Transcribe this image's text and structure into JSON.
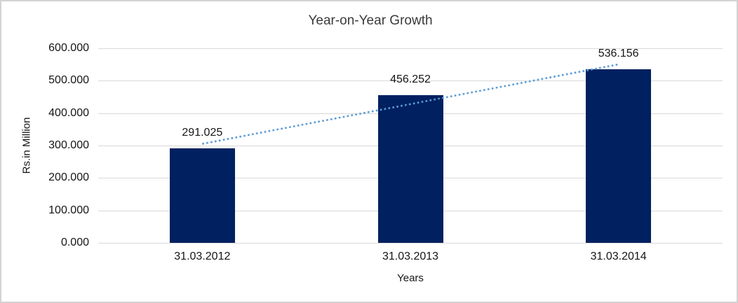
{
  "window": {
    "background": "#ffffff",
    "border_color": "#d3d3d3"
  },
  "chart_data": {
    "type": "bar",
    "title": "Year-on-Year Growth",
    "xlabel": "Years",
    "ylabel": "Rs.in Million",
    "categories": [
      "31.03.2012",
      "31.03.2013",
      "31.03.2014"
    ],
    "values": [
      291.025,
      456.252,
      536.156
    ],
    "data_labels": [
      "291.025",
      "456.252",
      "536.156"
    ],
    "ylim": [
      0,
      600
    ],
    "yticks": [
      0,
      100,
      200,
      300,
      400,
      500,
      600
    ],
    "ytick_labels": [
      "0.000",
      "100.000",
      "200.000",
      "300.000",
      "400.000",
      "500.000",
      "600.000"
    ],
    "grid": true,
    "legend": "none",
    "bar_color": "#002060",
    "gridline_color": "#d9d9d9",
    "trendline": {
      "type": "linear",
      "style": "dotted",
      "color": "#5b9bd5",
      "values_at_categories": [
        305.245,
        427.811,
        550.376
      ]
    }
  }
}
